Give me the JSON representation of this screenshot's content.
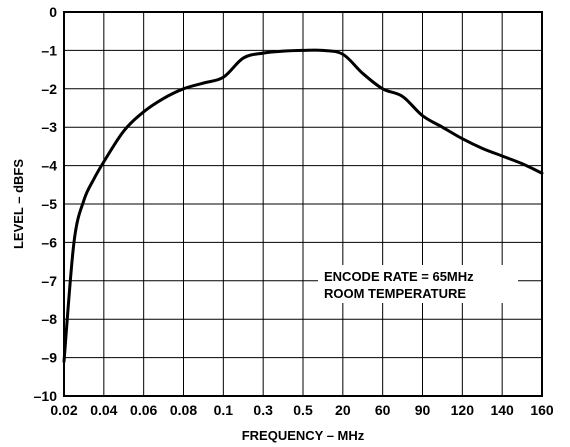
{
  "chart_data": {
    "type": "line",
    "xlabel": "FREQUENCY – MHz",
    "ylabel": "LEVEL – dBFS",
    "x_tick_labels": [
      "0.02",
      "0.04",
      "0.06",
      "0.08",
      "0.1",
      "0.3",
      "0.5",
      "20",
      "60",
      "90",
      "120",
      "140",
      "160"
    ],
    "y_tick_labels": [
      "0",
      "–1",
      "–2",
      "–3",
      "–4",
      "–5",
      "–6",
      "–7",
      "–8",
      "–9",
      "–10"
    ],
    "ylim": [
      -10,
      0
    ],
    "grid": true,
    "annotation": [
      "ENCODE RATE = 65MHz",
      "ROOM TEMPERATURE"
    ],
    "series": [
      {
        "x": [
          "0.02",
          "0.025",
          "0.03",
          "0.035",
          "0.04",
          "0.05",
          "0.06",
          "0.07",
          "0.08",
          "0.09",
          "0.1",
          "0.2",
          "0.3",
          "0.4",
          "0.5",
          "10",
          "20",
          "40",
          "60",
          "75",
          "90",
          "105",
          "120",
          "130",
          "140",
          "150",
          "160"
        ],
        "y": [
          -9.1,
          -6.0,
          -4.9,
          -4.35,
          -3.9,
          -3.1,
          -2.6,
          -2.25,
          -2.0,
          -1.85,
          -1.7,
          -1.2,
          -1.07,
          -1.02,
          -1.0,
          -1.0,
          -1.1,
          -1.6,
          -2.0,
          -2.2,
          -2.7,
          -3.0,
          -3.3,
          -3.55,
          -3.75,
          -3.95,
          -4.2
        ],
        "color": "#000000"
      }
    ]
  }
}
